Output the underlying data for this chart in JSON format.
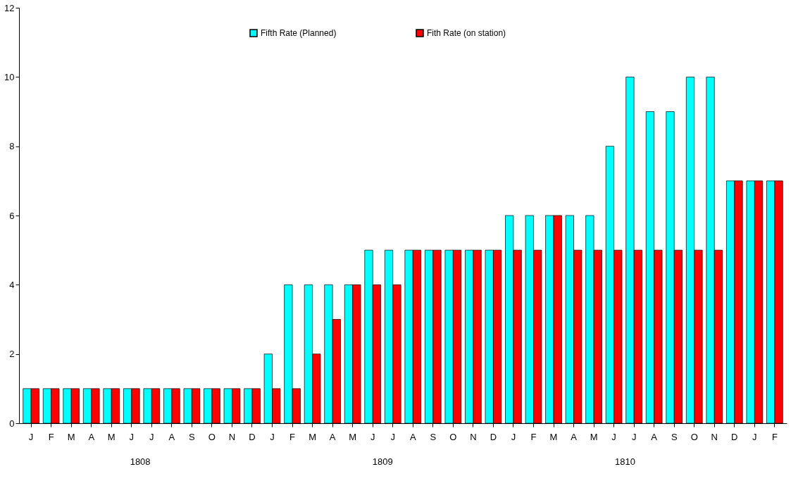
{
  "chart_data": {
    "type": "bar",
    "categories": [
      "J",
      "F",
      "M",
      "A",
      "M",
      "J",
      "J",
      "A",
      "S",
      "O",
      "N",
      "D",
      "J",
      "F",
      "M",
      "A",
      "M",
      "J",
      "J",
      "A",
      "S",
      "O",
      "N",
      "D",
      "J",
      "F",
      "M",
      "A",
      "M",
      "J",
      "J",
      "A",
      "S",
      "O",
      "N",
      "D",
      "J",
      "F"
    ],
    "series": [
      {
        "name": "Fifth Rate (Planned)",
        "color": "#00ffff",
        "values": [
          1,
          1,
          1,
          1,
          1,
          1,
          1,
          1,
          1,
          1,
          1,
          1,
          2,
          4,
          4,
          4,
          4,
          5,
          5,
          5,
          5,
          5,
          5,
          5,
          6,
          6,
          6,
          6,
          6,
          8,
          10,
          9,
          9,
          10,
          10,
          7,
          7,
          7
        ]
      },
      {
        "name": "Fith Rate (on station)",
        "color": "#ff0000",
        "values": [
          1,
          1,
          1,
          1,
          1,
          1,
          1,
          1,
          1,
          1,
          1,
          1,
          1,
          1,
          2,
          3,
          4,
          4,
          4,
          5,
          5,
          5,
          5,
          5,
          5,
          5,
          6,
          5,
          5,
          5,
          5,
          5,
          5,
          5,
          5,
          7,
          7,
          7
        ]
      }
    ],
    "annotations": [
      "1808",
      "1809",
      "1810"
    ],
    "ylim": [
      0,
      12
    ],
    "yticks": [
      0,
      2,
      4,
      6,
      8,
      10,
      12
    ],
    "grid": false,
    "legend": "top"
  }
}
